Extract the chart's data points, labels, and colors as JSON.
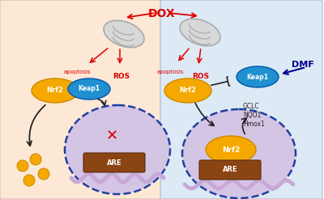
{
  "bg_left_color": "#fce8d5",
  "bg_right_color": "#ddeaf5",
  "dox_text": "DOX",
  "dox_color": "#dd0000",
  "dmf_text": "DMF",
  "dmf_color": "#00008B",
  "are_label": "ARE",
  "are_color": "#8B4513",
  "nrf2_color": "#F5A800",
  "nrf2_edge": "#cc8800",
  "keap1_color": "#2090D0",
  "keap1_edge": "#0055aa",
  "gold_dots_color": "#F5A800",
  "red_x_color": "#dd0000",
  "arrow_red": "#dd0000",
  "arrow_black": "#222222",
  "text_apoptosis": "apoptosis",
  "text_ros": "ROS",
  "text_gclc": "GCLC",
  "text_nqo1": "NQO1",
  "text_hmox1": "Hmox1",
  "dna_color": "#c8a8d8",
  "nucleus_fill": "#d5c5e5",
  "nucleus_border": "#2040a0",
  "mito_fill": "#d8d8d8",
  "mito_edge": "#aaaaaa"
}
